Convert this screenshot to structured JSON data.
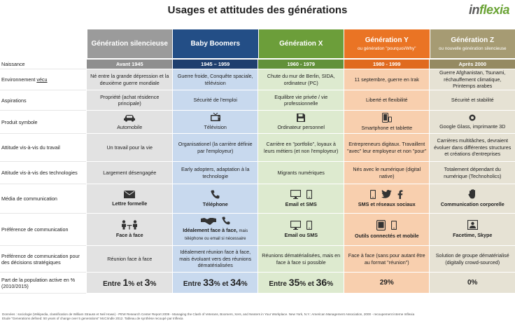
{
  "title": "Usages et attitudes des générations",
  "logo": {
    "prefix": "in",
    "accent": "flexia"
  },
  "generations": [
    {
      "name": "Génération silencieuse",
      "sub": "",
      "years": "Avant 1945"
    },
    {
      "name": "Baby Boomers",
      "sub": "",
      "years": "1945 – 1959"
    },
    {
      "name": "Génération X",
      "sub": "",
      "years": "1960 - 1979"
    },
    {
      "name": "Génération Y",
      "sub": "ou  génération \"pourquoi/Why\"",
      "years": "1980 - 1999"
    },
    {
      "name": "Génération Z",
      "sub": "ou nouvelle génération silencieuse",
      "years": "Après 2000"
    }
  ],
  "rows": {
    "naissance": {
      "label": "Naissance"
    },
    "environnement": {
      "label_a": "Environnement ",
      "label_b": "vécu",
      "cells": [
        "Né entre la grande dépression et la deuxième guerre mondiale",
        "Guerre froide, Conquête spaciale, télévision",
        "Chute du mur de Berlin, SIDA, ordinateur (PC)",
        "11 septembre, guerre en Irak",
        "Guerre Afghanistan, Tsunami, réchauffement climatique, Printemps arabes"
      ]
    },
    "aspirations": {
      "label": "Aspirations",
      "cells": [
        "Propriété (achat résidence principale)",
        "Sécurité de l'emploi",
        "Equilibre vie privée / vie professionnelle",
        "Liberté et flexibilité",
        "Sécurité et stabilité"
      ]
    },
    "produit": {
      "label": "Produit symbole",
      "cells": [
        "Automobile",
        "Télévision",
        "Ordinateur personnel",
        "Smartphone et tablette",
        "Google Glass, imprimante 3D"
      ],
      "icons": [
        "car-icon",
        "tv-icon",
        "floppy-disk-icon",
        "smartphone-icon",
        "glasses-icon"
      ]
    },
    "travail": {
      "label": "Attitude vis-à-vis du travail",
      "cells": [
        "Un travail pour la vie",
        "Organisationel (la carrière définie par l'employeur)",
        "Carrière en \"portfolio\", loyaux à leurs métiers (et non l'employeur)",
        "Entrepreneurs digitaux. Travaillent \"avec\" leur employeur et non \"pour\"",
        "Carrières multitâches, devraient évoluer dans différentes structures et créations d'entreprises"
      ]
    },
    "technologies": {
      "label": "Attitude vis-à-vis des technologies",
      "cells": [
        "Largement désengagée",
        "Early adopters, adaptation à la technologie",
        "Migrants numériques",
        "Nés avec le numérique (digital native)",
        "Totalement dépendant du numérique (Technoholics)"
      ]
    },
    "media": {
      "label": "Média de communication",
      "cells": [
        "Lettre formelle",
        "Téléphone",
        "Email et SMS",
        "SMS et réseaux sociaux",
        "Communication corporelle"
      ]
    },
    "preference": {
      "label": "Préférence de communication",
      "cells": [
        "Face à face",
        "Idéalement face à face,",
        "Email ou SMS",
        "Outils connectés et  mobile",
        "Facetime, Skype"
      ],
      "boomer_extra": "mais téléphone ou email si nécessaire"
    },
    "decisions": {
      "label": "Préférence de communication pour des décisions stratégiques",
      "cells": [
        "Réunion face à face",
        "Idéalement réunion face à face, mais évoluant vers des réunions dématérialisées",
        "Réunions dématérialisées, mais en face à face si possible",
        "Face à face (sans pour autant être au format \"réunion\")",
        "Solution de groupe dématérialisé (digitally crowd-sourced)"
      ]
    },
    "population": {
      "label": "Part de la population active en % (2010/2015)",
      "entre": "Entre",
      "et": "et",
      "pct": "%",
      "silent": [
        "1",
        "3"
      ],
      "boomers": [
        "33",
        "34"
      ],
      "genx": [
        "35",
        "36"
      ],
      "geny": "29%",
      "genz": "0%"
    }
  },
  "footer": {
    "line1": "Données : sociologie (Wikipedia, classification de William Strauss et Neil Howe) - PEW Research Center Report 2009 - Managing the Clash of Veterans, Boomers, Xers, and Nexters in Your Workplace. New York, N.Y.: American Management Association, 2000 - recoupement interne Inflexia",
    "line2": "Etude \"Generations defined: 50 years of change over 5 generations\" McCrindle 2012. Tableau de synthèse recoupé par Inflexia"
  }
}
